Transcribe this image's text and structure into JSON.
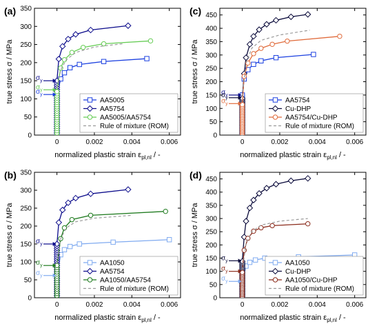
{
  "figure": {
    "axis_ylabel": "true stress σ / MPa",
    "axis_xlabel_main": "normalized plastic strain ε",
    "axis_xlabel_sub": "pl,nl",
    "axis_xlabel_tail": " / -",
    "sigma_y_symbol": "σ",
    "sigma_y_sub": "y"
  },
  "colors": {
    "axis": "#000000",
    "rom": "#999999",
    "aa5005": "#1a3fe0",
    "aa5754": "#0a0a8a",
    "aa5005_aa5754": "#66cc55",
    "aa1050": "#7faaf0",
    "aa1050_aa5754": "#1e7a1e",
    "cu_dhp": "#0a0a3a",
    "aa5754_cu_dhp": "#e06a3a",
    "aa1050_cu_dhp": "#8a2a1a"
  },
  "chart_data": [
    {
      "panel_label": "(a)",
      "type": "line",
      "ylabel": "true stress σ / MPa",
      "xlabel": "normalized plastic strain ε pl,nl / -",
      "xlim": [
        -0.0012,
        0.0066
      ],
      "ylim": [
        0,
        350
      ],
      "xticks": [
        0,
        0.002,
        0.004,
        0.006
      ],
      "xticklabels": [
        "0",
        "0.002",
        "0.004",
        "0.006"
      ],
      "yticks": [
        0,
        50,
        100,
        150,
        200,
        250,
        300,
        350
      ],
      "yticklabels": [
        "0",
        "50",
        "100",
        "150",
        "200",
        "250",
        "300",
        "350"
      ],
      "legend_position": "bottom-right",
      "sigma_y_markers": [
        {
          "y": 150,
          "color": "#0a0a8a"
        },
        {
          "y": 125,
          "color": "#66cc55"
        },
        {
          "y": 112,
          "color": "#1a3fe0"
        }
      ],
      "series": [
        {
          "name": "AA5005",
          "color": "#1a3fe0",
          "linestyle": "solid",
          "marker": "square",
          "yield_stress": 112,
          "x": [
            0,
            0.0002,
            0.0004,
            0.0007,
            0.0012,
            0.0025,
            0.0048
          ],
          "y": [
            112,
            155,
            172,
            186,
            195,
            203,
            211
          ]
        },
        {
          "name": "AA5754",
          "color": "#0a0a8a",
          "linestyle": "solid",
          "marker": "diamond",
          "yield_stress": 150,
          "x": [
            0,
            0.0001,
            0.0003,
            0.0006,
            0.001,
            0.0018,
            0.0038
          ],
          "y": [
            150,
            210,
            245,
            265,
            278,
            290,
            302
          ]
        },
        {
          "name": "AA5005/AA5754",
          "color": "#66cc55",
          "linestyle": "solid",
          "marker": "circle",
          "yield_stress": 125,
          "x": [
            0,
            0.0002,
            0.0004,
            0.0008,
            0.0014,
            0.0025,
            0.005
          ],
          "y": [
            125,
            185,
            208,
            228,
            242,
            252,
            260
          ]
        },
        {
          "name": "Rule of mixture (ROM)",
          "color": "#999999",
          "linestyle": "dashed",
          "marker": "none",
          "x": [
            0,
            0.0002,
            0.0005,
            0.001,
            0.002,
            0.0035
          ],
          "y": [
            130,
            180,
            208,
            228,
            243,
            252
          ]
        }
      ]
    },
    {
      "panel_label": "(b)",
      "type": "line",
      "ylabel": "true stress σ / MPa",
      "xlabel": "normalized plastic strain ε pl,nl / -",
      "xlim": [
        -0.0012,
        0.0066
      ],
      "ylim": [
        0,
        350
      ],
      "xticks": [
        0,
        0.002,
        0.004,
        0.006
      ],
      "xticklabels": [
        "0",
        "0.002",
        "0.004",
        "0.006"
      ],
      "yticks": [
        0,
        50,
        100,
        150,
        200,
        250,
        300,
        350
      ],
      "yticklabels": [
        "0",
        "50",
        "100",
        "150",
        "200",
        "250",
        "300",
        "350"
      ],
      "legend_position": "bottom-right",
      "sigma_y_markers": [
        {
          "y": 150,
          "color": "#0a0a8a"
        },
        {
          "y": 90,
          "color": "#1e7a1e"
        },
        {
          "y": 62,
          "color": "#7faaf0"
        }
      ],
      "series": [
        {
          "name": "AA1050",
          "color": "#7faaf0",
          "linestyle": "solid",
          "marker": "square",
          "yield_stress": 62,
          "x": [
            0,
            0.0002,
            0.0004,
            0.0007,
            0.0012,
            0.003,
            0.006
          ],
          "y": [
            62,
            120,
            134,
            143,
            150,
            155,
            162
          ]
        },
        {
          "name": "AA5754",
          "color": "#0a0a8a",
          "linestyle": "solid",
          "marker": "diamond",
          "yield_stress": 150,
          "x": [
            0,
            0.0001,
            0.0003,
            0.0006,
            0.001,
            0.0018,
            0.0038
          ],
          "y": [
            150,
            210,
            245,
            265,
            278,
            290,
            302
          ]
        },
        {
          "name": "AA1050/AA5754",
          "color": "#1e7a1e",
          "linestyle": "solid",
          "marker": "circle",
          "yield_stress": 90,
          "x": [
            0,
            0.0002,
            0.0004,
            0.0008,
            0.0018,
            0.0058
          ],
          "y": [
            90,
            165,
            195,
            218,
            230,
            241
          ]
        },
        {
          "name": "Rule of mixture (ROM)",
          "color": "#999999",
          "linestyle": "dashed",
          "marker": "none",
          "x": [
            0,
            0.0002,
            0.0005,
            0.001,
            0.002,
            0.004
          ],
          "y": [
            95,
            165,
            195,
            212,
            222,
            230
          ]
        }
      ]
    },
    {
      "panel_label": "(c)",
      "type": "line",
      "ylabel": "true stress σ / MPa",
      "xlabel": "normalized plastic strain ε pl,nl / -",
      "xlim": [
        -0.0012,
        0.0066
      ],
      "ylim": [
        0,
        475
      ],
      "xticks": [
        0,
        0.002,
        0.004,
        0.006
      ],
      "xticklabels": [
        "0",
        "0.002",
        "0.004",
        "0.006"
      ],
      "yticks": [
        0,
        50,
        100,
        150,
        200,
        250,
        300,
        350,
        400,
        450
      ],
      "yticklabels": [
        "0",
        "50",
        "100",
        "150",
        "200",
        "250",
        "300",
        "350",
        "400",
        "450"
      ],
      "legend_position": "bottom-right",
      "sigma_y_markers": [
        {
          "y": 150,
          "color": "#0a0a8a"
        },
        {
          "y": 140,
          "color": "#0a0a3a"
        },
        {
          "y": 118,
          "color": "#e06a3a"
        }
      ],
      "series": [
        {
          "name": "AA5754",
          "color": "#1a3fe0",
          "linestyle": "solid",
          "marker": "square",
          "yield_stress": 150,
          "x": [
            0,
            0.0001,
            0.0003,
            0.0006,
            0.001,
            0.0018,
            0.0038
          ],
          "y": [
            150,
            210,
            245,
            265,
            278,
            290,
            302
          ]
        },
        {
          "name": "Cu-DHP",
          "color": "#0a0a3a",
          "linestyle": "solid",
          "marker": "diamond",
          "yield_stress": 140,
          "x": [
            0,
            0.0001,
            0.0002,
            0.0004,
            0.0006,
            0.0009,
            0.0013,
            0.0018,
            0.0026,
            0.0035
          ],
          "y": [
            140,
            230,
            290,
            340,
            370,
            395,
            415,
            430,
            443,
            452
          ]
        },
        {
          "name": "AA5754/Cu-DHP",
          "color": "#e06a3a",
          "linestyle": "solid",
          "marker": "circle",
          "yield_stress": 118,
          "x": [
            0,
            0.0001,
            0.0003,
            0.0006,
            0.001,
            0.0016,
            0.0024,
            0.0052
          ],
          "y": [
            118,
            220,
            270,
            305,
            325,
            340,
            352,
            370
          ]
        },
        {
          "name": "Rule of mixture (ROM)",
          "color": "#999999",
          "linestyle": "dashed",
          "marker": "none",
          "x": [
            0,
            0.0002,
            0.0005,
            0.001,
            0.002,
            0.0036
          ],
          "y": [
            145,
            270,
            325,
            355,
            375,
            393
          ]
        }
      ]
    },
    {
      "panel_label": "(d)",
      "type": "line",
      "ylabel": "true stress σ / MPa",
      "xlabel": "normalized plastic strain ε pl,nl / -",
      "xlim": [
        -0.0012,
        0.0066
      ],
      "ylim": [
        0,
        475
      ],
      "xticks": [
        0,
        0.002,
        0.004,
        0.006
      ],
      "xticklabels": [
        "0",
        "0.002",
        "0.004",
        "0.006"
      ],
      "yticks": [
        0,
        50,
        100,
        150,
        200,
        250,
        300,
        350,
        400,
        450
      ],
      "yticklabels": [
        "0",
        "50",
        "100",
        "150",
        "200",
        "250",
        "300",
        "350",
        "400",
        "450"
      ],
      "legend_position": "bottom-right",
      "sigma_y_markers": [
        {
          "y": 140,
          "color": "#0a0a3a"
        },
        {
          "y": 100,
          "color": "#8a2a1a"
        },
        {
          "y": 62,
          "color": "#7faaf0"
        }
      ],
      "series": [
        {
          "name": "AA1050",
          "color": "#7faaf0",
          "linestyle": "solid",
          "marker": "square",
          "yield_stress": 62,
          "x": [
            0,
            0.0002,
            0.0004,
            0.0007,
            0.0012,
            0.003,
            0.006
          ],
          "y": [
            62,
            120,
            134,
            143,
            150,
            155,
            162
          ]
        },
        {
          "name": "Cu-DHP",
          "color": "#0a0a3a",
          "linestyle": "solid",
          "marker": "diamond",
          "yield_stress": 140,
          "x": [
            0,
            0.0001,
            0.0002,
            0.0004,
            0.0006,
            0.0009,
            0.0013,
            0.0018,
            0.0026,
            0.0035
          ],
          "y": [
            140,
            230,
            290,
            340,
            370,
            395,
            415,
            430,
            443,
            452
          ]
        },
        {
          "name": "AA1050/Cu-DHP",
          "color": "#8a2a1a",
          "linestyle": "solid",
          "marker": "circle",
          "yield_stress": 100,
          "x": [
            0,
            0.0001,
            0.0003,
            0.0006,
            0.001,
            0.0016,
            0.0035
          ],
          "y": [
            100,
            180,
            225,
            252,
            265,
            273,
            280
          ]
        },
        {
          "name": "Rule of mixture (ROM)",
          "color": "#999999",
          "linestyle": "dashed",
          "marker": "none",
          "x": [
            0,
            0.0002,
            0.0005,
            0.001,
            0.002,
            0.0035
          ],
          "y": [
            105,
            205,
            250,
            275,
            290,
            300
          ]
        }
      ]
    }
  ]
}
